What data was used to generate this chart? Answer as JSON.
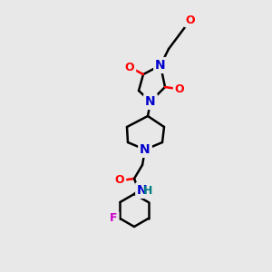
{
  "bg_color": "#e8e8e8",
  "atom_colors": {
    "N": "#0000cc",
    "O": "#ff0000",
    "F": "#cc00cc",
    "C": "#000000",
    "H": "#008080"
  },
  "bond_color": "#000000",
  "bond_width": 1.8,
  "font_size_atom": 10,
  "font_size_small": 9
}
